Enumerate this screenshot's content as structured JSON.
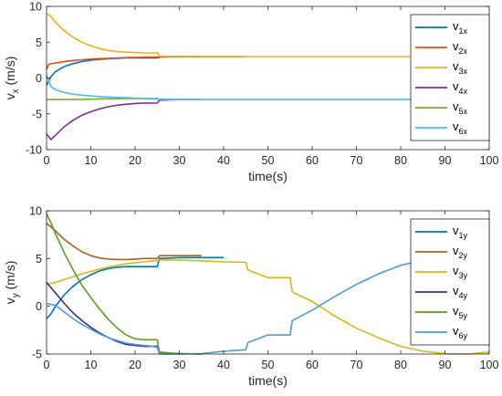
{
  "chart_data": [
    {
      "type": "line",
      "xlabel": "time(s)",
      "ylabel_main": "v",
      "ylabel_sub": "x",
      "ylabel_unit": " (m/s)",
      "xlim": [
        0,
        100
      ],
      "ylim": [
        -10,
        10
      ],
      "xticks": [
        "0",
        "10",
        "20",
        "30",
        "40",
        "50",
        "60",
        "70",
        "80",
        "90",
        "100"
      ],
      "yticks": [
        "-10",
        "-5",
        "0",
        "5",
        "10"
      ],
      "legend": "top-right",
      "grid": false,
      "series": [
        {
          "name": "v",
          "sub": "1x",
          "color": "#0072BD",
          "x": [
            0,
            1,
            2,
            4,
            6,
            8,
            10,
            12,
            14,
            16,
            18,
            20,
            22,
            24,
            25,
            26,
            28,
            30,
            35
          ],
          "y": [
            -1.0,
            0.2,
            0.9,
            1.6,
            2.0,
            2.3,
            2.5,
            2.6,
            2.7,
            2.75,
            2.8,
            2.8,
            2.8,
            2.8,
            2.8,
            2.95,
            2.97,
            2.98,
            3.0
          ]
        },
        {
          "name": "v",
          "sub": "2x",
          "color": "#D95319",
          "x": [
            0,
            0.5,
            1,
            2,
            4,
            6,
            8,
            10,
            12,
            14,
            16,
            18,
            20,
            22,
            24,
            25,
            26,
            28,
            30,
            35,
            40,
            45
          ],
          "y": [
            1.2,
            1.9,
            2.0,
            2.1,
            2.3,
            2.45,
            2.55,
            2.65,
            2.7,
            2.75,
            2.8,
            2.85,
            2.88,
            2.9,
            2.92,
            2.93,
            2.95,
            2.97,
            2.98,
            3.0,
            3.0,
            3.0
          ]
        },
        {
          "name": "v",
          "sub": "3x",
          "color": "#EDB120",
          "x": [
            0,
            1,
            2,
            4,
            6,
            8,
            10,
            12,
            14,
            16,
            18,
            20,
            22,
            24,
            25,
            25.5,
            30,
            40,
            50,
            60,
            70,
            80,
            90,
            100
          ],
          "y": [
            9.0,
            8.6,
            7.8,
            6.6,
            5.7,
            5.0,
            4.5,
            4.1,
            3.85,
            3.7,
            3.6,
            3.55,
            3.5,
            3.5,
            3.5,
            3.05,
            3.0,
            3.0,
            3.0,
            3.0,
            3.0,
            3.0,
            3.0,
            3.0
          ]
        },
        {
          "name": "v",
          "sub": "4x",
          "color": "#7E2F8E",
          "x": [
            0,
            1,
            2,
            4,
            6,
            8,
            10,
            12,
            14,
            16,
            18,
            20,
            22,
            24,
            25,
            25.5,
            28,
            30,
            35
          ],
          "y": [
            -7.8,
            -8.6,
            -8.0,
            -6.8,
            -5.9,
            -5.2,
            -4.7,
            -4.3,
            -4.0,
            -3.8,
            -3.65,
            -3.55,
            -3.5,
            -3.5,
            -3.5,
            -3.1,
            -3.05,
            -3.0,
            -3.0
          ]
        },
        {
          "name": "v",
          "sub": "5x",
          "color": "#77AC30",
          "x": [
            0,
            1,
            2,
            4,
            6,
            8,
            10,
            12,
            14,
            16,
            18,
            20,
            22,
            24,
            25,
            25.5,
            30
          ],
          "y": [
            -3.0,
            -3.0,
            -3.0,
            -3.0,
            -3.0,
            -2.98,
            -2.95,
            -2.92,
            -2.9,
            -2.88,
            -2.86,
            -2.85,
            -2.85,
            -2.85,
            -2.85,
            -3.0,
            -3.0
          ]
        },
        {
          "name": "v",
          "sub": "6x",
          "color": "#4DBEEE",
          "x": [
            0,
            1,
            2,
            4,
            6,
            8,
            10,
            12,
            14,
            16,
            18,
            20,
            22,
            24,
            26,
            28,
            30,
            40,
            50,
            60,
            70,
            80,
            90,
            100
          ],
          "y": [
            0.4,
            -1.2,
            -1.6,
            -2.0,
            -2.25,
            -2.4,
            -2.5,
            -2.6,
            -2.65,
            -2.7,
            -2.75,
            -2.8,
            -2.85,
            -2.9,
            -2.95,
            -2.98,
            -3.0,
            -3.0,
            -3.0,
            -3.0,
            -3.0,
            -3.0,
            -3.0,
            -3.0
          ]
        }
      ]
    },
    {
      "type": "line",
      "xlabel": "time(s)",
      "ylabel_main": "v",
      "ylabel_sub": "y",
      "ylabel_unit": " (m/s)",
      "xlim": [
        0,
        100
      ],
      "ylim": [
        -5,
        10
      ],
      "xticks": [
        "0",
        "10",
        "20",
        "30",
        "40",
        "50",
        "60",
        "70",
        "80",
        "90",
        "100"
      ],
      "yticks": [
        "-5",
        "0",
        "5",
        "10"
      ],
      "legend": "top-right",
      "grid": false,
      "series": [
        {
          "name": "v",
          "sub": "1y",
          "color": "#0072BD",
          "x": [
            0,
            1,
            2,
            4,
            6,
            8,
            10,
            12,
            14,
            16,
            18,
            20,
            22,
            24,
            25,
            25.5,
            28,
            30,
            35,
            40
          ],
          "y": [
            -1.3,
            -0.8,
            0.0,
            1.2,
            2.1,
            2.8,
            3.3,
            3.7,
            3.95,
            4.1,
            4.15,
            4.15,
            4.15,
            4.15,
            4.15,
            5.0,
            5.05,
            5.1,
            5.1,
            5.1
          ]
        },
        {
          "name": "v",
          "sub": "2y",
          "color": "#A2642A",
          "x": [
            0,
            2,
            4,
            6,
            8,
            10,
            12,
            14,
            16,
            18,
            20,
            22,
            24,
            25,
            25.5,
            28,
            30,
            35
          ],
          "y": [
            8.7,
            7.9,
            7.0,
            6.3,
            5.7,
            5.3,
            5.05,
            4.95,
            4.9,
            4.9,
            4.95,
            5.0,
            5.0,
            5.0,
            5.3,
            5.3,
            5.3,
            5.3
          ]
        },
        {
          "name": "v",
          "sub": "3y",
          "color": "#D4B81A",
          "x": [
            0,
            2,
            4,
            6,
            8,
            10,
            12,
            14,
            16,
            18,
            20,
            22,
            24,
            25,
            25.5,
            30,
            35,
            40,
            45,
            45.5,
            50,
            55,
            55.5,
            60,
            65,
            70,
            75,
            80,
            85,
            90,
            95,
            100
          ],
          "y": [
            2.3,
            2.5,
            2.8,
            3.1,
            3.4,
            3.65,
            3.9,
            4.1,
            4.3,
            4.45,
            4.55,
            4.65,
            4.75,
            4.8,
            4.85,
            4.85,
            4.75,
            4.65,
            4.6,
            3.8,
            3.0,
            3.0,
            1.5,
            0.5,
            -1.0,
            -2.3,
            -3.3,
            -4.2,
            -4.7,
            -4.95,
            -5.0,
            -4.8
          ]
        },
        {
          "name": "v",
          "sub": "4y",
          "color": "#3F2A8E",
          "x": [
            0,
            2,
            4,
            6,
            8,
            10,
            12,
            14,
            16,
            18,
            20,
            22,
            24,
            25,
            25.5,
            28,
            30,
            35
          ],
          "y": [
            2.5,
            1.4,
            0.3,
            -0.7,
            -1.5,
            -2.2,
            -2.8,
            -3.3,
            -3.7,
            -4.0,
            -4.1,
            -4.2,
            -4.2,
            -4.2,
            -4.8,
            -4.9,
            -4.95,
            -5.0
          ]
        },
        {
          "name": "v",
          "sub": "5y",
          "color": "#5E9E1E",
          "x": [
            0,
            1,
            2,
            4,
            6,
            8,
            10,
            12,
            14,
            16,
            18,
            20,
            22,
            24,
            25,
            25.5,
            28,
            30,
            35
          ],
          "y": [
            9.7,
            8.7,
            7.6,
            5.6,
            3.8,
            2.2,
            0.9,
            -0.3,
            -1.4,
            -2.3,
            -3.0,
            -3.4,
            -3.5,
            -3.5,
            -3.5,
            -4.8,
            -4.9,
            -4.95,
            -5.0
          ]
        },
        {
          "name": "v",
          "sub": "6y",
          "color": "#4E9BD6",
          "x": [
            0,
            2,
            4,
            6,
            8,
            10,
            12,
            14,
            16,
            18,
            20,
            22,
            24,
            25,
            25.5,
            30,
            35,
            40,
            45,
            45.5,
            50,
            55,
            55.5,
            60,
            65,
            70,
            75,
            80,
            85,
            90,
            95,
            100
          ],
          "y": [
            0.3,
            0.1,
            -0.6,
            -1.3,
            -1.9,
            -2.4,
            -2.9,
            -3.3,
            -3.6,
            -3.85,
            -4.0,
            -4.1,
            -4.2,
            -4.3,
            -5.0,
            -5.0,
            -4.95,
            -4.7,
            -4.55,
            -3.8,
            -3.0,
            -3.0,
            -1.5,
            -0.4,
            1.0,
            2.3,
            3.4,
            4.3,
            4.8,
            5.0,
            5.0,
            4.8
          ]
        }
      ]
    }
  ]
}
